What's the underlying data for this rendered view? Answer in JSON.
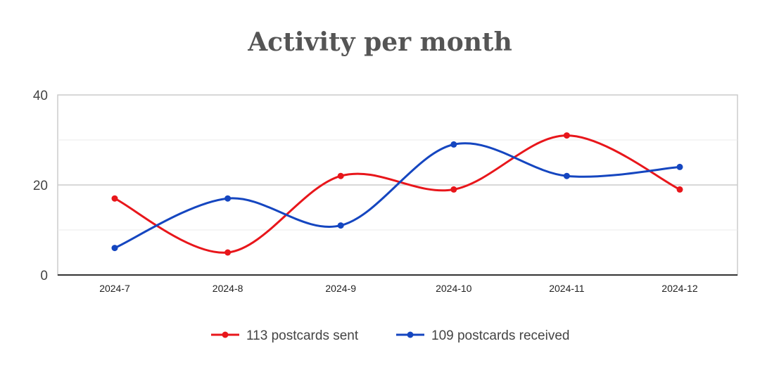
{
  "chart_data": {
    "type": "line",
    "title": "Activity per month",
    "categories": [
      "2024-7",
      "2024-8",
      "2024-9",
      "2024-10",
      "2024-11",
      "2024-12"
    ],
    "series": [
      {
        "name": "113 postcards sent",
        "values": [
          17,
          5,
          22,
          19,
          31,
          19
        ],
        "color": "#e8161b"
      },
      {
        "name": "109 postcards received",
        "values": [
          6,
          17,
          11,
          29,
          22,
          24
        ],
        "color": "#1546c0"
      }
    ],
    "ylim": [
      0,
      40
    ],
    "yticks": [
      "0",
      "20",
      "40"
    ],
    "grid": true,
    "smooth": true,
    "legend_position": "bottom"
  }
}
